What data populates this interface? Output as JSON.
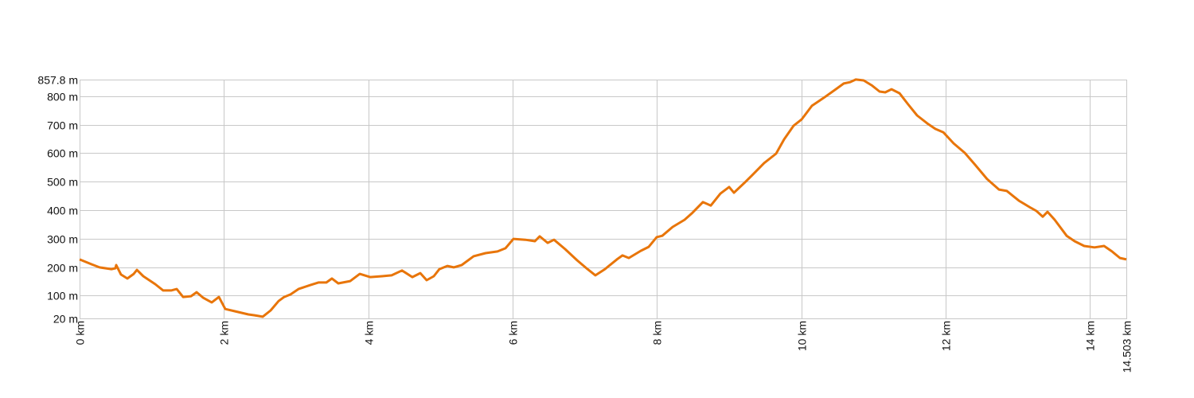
{
  "chart_data": {
    "type": "line",
    "title": "",
    "xlabel": "",
    "ylabel": "",
    "xlim": [
      0,
      14.503
    ],
    "ylim": [
      20,
      857.8
    ],
    "grid": true,
    "line_color": "#e8750a",
    "x_ticks": [
      0,
      2,
      4,
      6,
      8,
      10,
      12,
      14,
      14.503
    ],
    "x_tick_labels": [
      "0 km",
      "2 km",
      "4 km",
      "6 km",
      "8 km",
      "10 km",
      "12 km",
      "14 km",
      "14.503 km"
    ],
    "y_ticks": [
      20,
      100,
      200,
      300,
      400,
      500,
      600,
      700,
      800,
      857.8
    ],
    "y_tick_labels": [
      "20 m",
      "100 m",
      "200 m",
      "300 m",
      "400 m",
      "500 m",
      "600 m",
      "700 m",
      "800 m",
      "857.8 m"
    ],
    "series": [
      {
        "x": [
          0,
          0.165,
          0.276,
          0.441,
          0.496,
          0.507,
          0.574,
          0.662,
          0.75,
          0.794,
          0.882,
          1.048,
          1.158,
          1.268,
          1.346,
          1.434,
          1.544,
          1.621,
          1.709,
          1.831,
          1.93,
          2.018,
          2.151,
          2.338,
          2.426,
          2.537,
          2.647,
          2.757,
          2.834,
          2.923,
          3.033,
          3.198,
          3.309,
          3.419,
          3.496,
          3.584,
          3.75,
          3.882,
          4.026,
          4.191,
          4.323,
          4.467,
          4.61,
          4.72,
          4.809,
          4.908,
          4.985,
          5.095,
          5.184,
          5.294,
          5.459,
          5.625,
          5.79,
          5.901,
          6.011,
          6.176,
          6.309,
          6.375,
          6.485,
          6.573,
          6.728,
          6.893,
          7.037,
          7.147,
          7.279,
          7.445,
          7.522,
          7.61,
          7.775,
          7.886,
          7.996,
          8.073,
          8.217,
          8.382,
          8.492,
          8.636,
          8.746,
          8.878,
          9.0,
          9.066,
          9.209,
          9.32,
          9.485,
          9.65,
          9.761,
          9.893,
          10.003,
          10.147,
          10.312,
          10.477,
          10.588,
          10.676,
          10.754,
          10.864,
          10.974,
          11.084,
          11.162,
          11.25,
          11.36,
          11.47,
          11.603,
          11.746,
          11.856,
          11.967,
          12.11,
          12.264,
          12.408,
          12.573,
          12.738,
          12.848,
          13.014,
          13.179,
          13.257,
          13.345,
          13.411,
          13.51,
          13.676,
          13.786,
          13.918,
          14.062,
          14.194,
          14.304,
          14.415,
          14.503
        ],
        "y": [
          227,
          210,
          199,
          193,
          196,
          207,
          174,
          160,
          176,
          190,
          168,
          140,
          118,
          118,
          123,
          95,
          98,
          112,
          93,
          76,
          95,
          53,
          45,
          34,
          31,
          26,
          48,
          81,
          95,
          104,
          123,
          137,
          146,
          146,
          160,
          143,
          151,
          176,
          165,
          168,
          171,
          188,
          165,
          179,
          154,
          168,
          193,
          204,
          199,
          207,
          238,
          249,
          255,
          266,
          299,
          296,
          291,
          308,
          285,
          296,
          263,
          224,
          193,
          171,
          193,
          227,
          241,
          232,
          257,
          271,
          305,
          310,
          341,
          366,
          391,
          428,
          416,
          458,
          481,
          461,
          495,
          523,
          565,
          598,
          648,
          696,
          718,
          766,
          794,
          824,
          844,
          849,
          858,
          855,
          838,
          816,
          813,
          824,
          810,
          774,
          732,
          704,
          685,
          673,
          634,
          601,
          559,
          509,
          472,
          467,
          433,
          408,
          397,
          377,
          394,
          366,
          310,
          291,
          274,
          269,
          274,
          255,
          232,
          227
        ]
      }
    ]
  }
}
